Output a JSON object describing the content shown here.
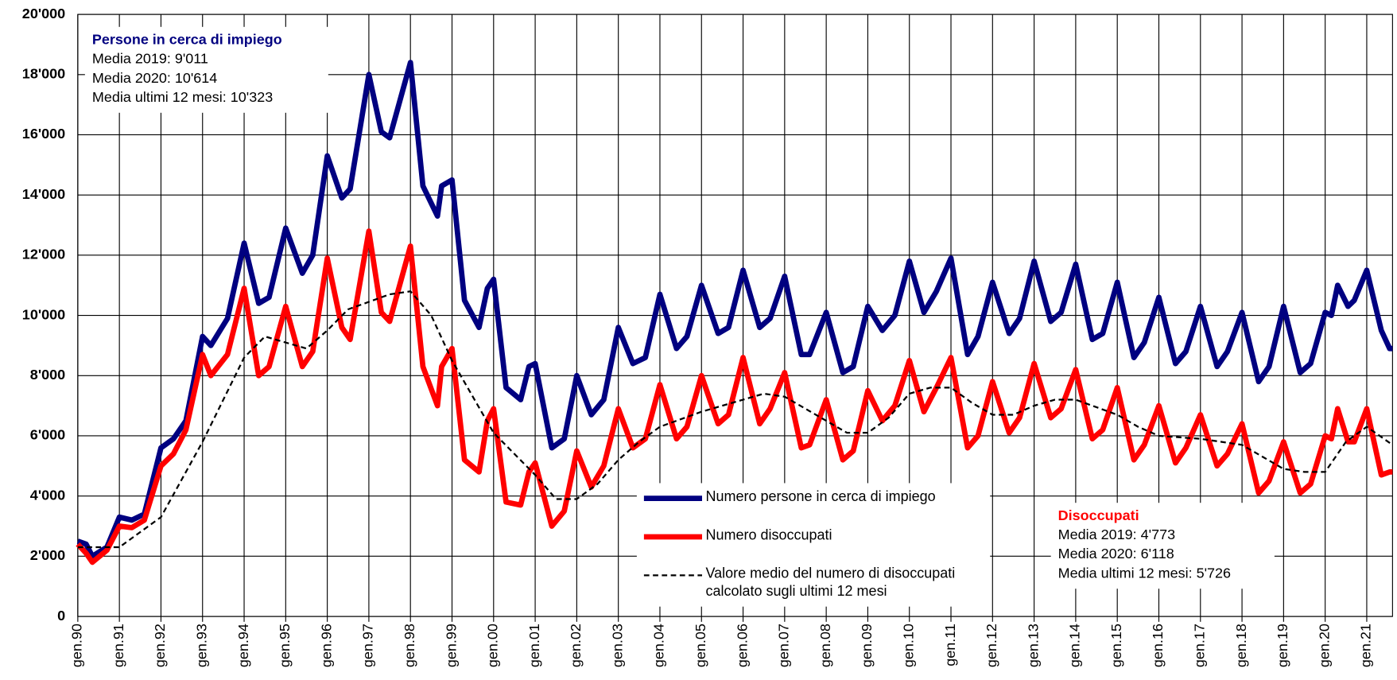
{
  "chart_data": {
    "type": "line",
    "xlim": [
      1990,
      2021.62
    ],
    "ylim": [
      0,
      20000
    ],
    "xticks": [
      {
        "value": 1990,
        "label": "gen.90"
      },
      {
        "value": 1991,
        "label": "gen.91"
      },
      {
        "value": 1992,
        "label": "gen.92"
      },
      {
        "value": 1993,
        "label": "gen.93"
      },
      {
        "value": 1994,
        "label": "gen.94"
      },
      {
        "value": 1995,
        "label": "gen.95"
      },
      {
        "value": 1996,
        "label": "gen.96"
      },
      {
        "value": 1997,
        "label": "gen.97"
      },
      {
        "value": 1998,
        "label": "gen.98"
      },
      {
        "value": 1999,
        "label": "gen.99"
      },
      {
        "value": 2000,
        "label": "gen.00"
      },
      {
        "value": 2001,
        "label": "gen.01"
      },
      {
        "value": 2002,
        "label": "gen.02"
      },
      {
        "value": 2003,
        "label": "gen.03"
      },
      {
        "value": 2004,
        "label": "gen.04"
      },
      {
        "value": 2005,
        "label": "gen.05"
      },
      {
        "value": 2006,
        "label": "gen.06"
      },
      {
        "value": 2007,
        "label": "gen.07"
      },
      {
        "value": 2008,
        "label": "gen.08"
      },
      {
        "value": 2009,
        "label": "gen.09"
      },
      {
        "value": 2010,
        "label": "gen.10"
      },
      {
        "value": 2011,
        "label": "gen.11"
      },
      {
        "value": 2012,
        "label": "gen.12"
      },
      {
        "value": 2013,
        "label": "gen.13"
      },
      {
        "value": 2014,
        "label": "gen.14"
      },
      {
        "value": 2015,
        "label": "gen.15"
      },
      {
        "value": 2016,
        "label": "gen.16"
      },
      {
        "value": 2017,
        "label": "gen.17"
      },
      {
        "value": 2018,
        "label": "gen.18"
      },
      {
        "value": 2019,
        "label": "gen.19"
      },
      {
        "value": 2020,
        "label": "gen.20"
      },
      {
        "value": 2021,
        "label": "gen.21"
      }
    ],
    "yticks": [
      0,
      {
        "value": 2000,
        "label": "2'000"
      },
      {
        "value": 4000,
        "label": "4'000"
      },
      {
        "value": 6000,
        "label": "6'000"
      },
      {
        "value": 8000,
        "label": "8'000"
      },
      {
        "value": 10000,
        "label": "10'000"
      },
      {
        "value": 12000,
        "label": "12'000"
      },
      {
        "value": 14000,
        "label": "14'000"
      },
      {
        "value": 16000,
        "label": "16'000"
      },
      {
        "value": 18000,
        "label": "18'000"
      },
      {
        "value": 20000,
        "label": "20'000"
      }
    ],
    "grid": true,
    "series": [
      {
        "name": "Numero persone in cerca di impiego",
        "color": "#000080",
        "width": 6,
        "x": [
          1990.0,
          1990.2,
          1990.35,
          1990.7,
          1991.0,
          1991.3,
          1991.6,
          1992.0,
          1992.3,
          1992.6,
          1993.0,
          1993.2,
          1993.6,
          1994.0,
          1994.35,
          1994.6,
          1995.0,
          1995.4,
          1995.65,
          1996.0,
          1996.35,
          1996.55,
          1997.0,
          1997.3,
          1997.5,
          1998.0,
          1998.3,
          1998.65,
          1998.75,
          1999.0,
          1999.3,
          1999.65,
          1999.85,
          2000.0,
          2000.3,
          2000.65,
          2000.85,
          2001.0,
          2001.4,
          2001.7,
          2002.0,
          2002.35,
          2002.65,
          2003.0,
          2003.35,
          2003.65,
          2004.0,
          2004.4,
          2004.65,
          2005.0,
          2005.4,
          2005.65,
          2006.0,
          2006.4,
          2006.65,
          2007.0,
          2007.4,
          2007.6,
          2008.0,
          2008.4,
          2008.65,
          2009.0,
          2009.35,
          2009.65,
          2010.0,
          2010.35,
          2010.65,
          2011.0,
          2011.4,
          2011.65,
          2012.0,
          2012.4,
          2012.65,
          2013.0,
          2013.4,
          2013.65,
          2014.0,
          2014.4,
          2014.65,
          2015.0,
          2015.4,
          2015.65,
          2016.0,
          2016.4,
          2016.65,
          2017.0,
          2017.4,
          2017.65,
          2018.0,
          2018.4,
          2018.65,
          2019.0,
          2019.4,
          2019.65,
          2020.0,
          2020.15,
          2020.3,
          2020.55,
          2020.7,
          2021.0,
          2021.35,
          2021.55,
          2021.62
        ],
        "values": [
          2500,
          2400,
          2000,
          2300,
          3300,
          3200,
          3400,
          5600,
          5900,
          6500,
          9300,
          9000,
          9900,
          12400,
          10400,
          10600,
          12900,
          11400,
          12000,
          15300,
          13900,
          14200,
          18000,
          16100,
          15900,
          18400,
          14300,
          13300,
          14300,
          14500,
          10500,
          9600,
          10900,
          11200,
          7600,
          7200,
          8300,
          8400,
          5600,
          5900,
          8000,
          6700,
          7200,
          9600,
          8400,
          8600,
          10700,
          8900,
          9300,
          11000,
          9400,
          9600,
          11500,
          9600,
          9900,
          11300,
          8700,
          8700,
          10100,
          8100,
          8300,
          10300,
          9500,
          10000,
          11800,
          10100,
          10800,
          11900,
          8700,
          9300,
          11100,
          9400,
          9900,
          11800,
          9800,
          10100,
          11700,
          9200,
          9400,
          11100,
          8600,
          9100,
          10600,
          8400,
          8800,
          10300,
          8300,
          8800,
          10100,
          7800,
          8300,
          10300,
          8100,
          8400,
          10100,
          10000,
          11000,
          10300,
          10500,
          11500,
          9500,
          8900,
          8900
        ]
      },
      {
        "name": "Numero disoccupati",
        "color": "#ff0000",
        "width": 6,
        "x": [
          1990.0,
          1990.2,
          1990.35,
          1990.7,
          1991.0,
          1991.3,
          1991.6,
          1992.0,
          1992.3,
          1992.6,
          1993.0,
          1993.2,
          1993.6,
          1994.0,
          1994.35,
          1994.6,
          1995.0,
          1995.4,
          1995.65,
          1996.0,
          1996.35,
          1996.55,
          1997.0,
          1997.3,
          1997.5,
          1998.0,
          1998.3,
          1998.65,
          1998.75,
          1999.0,
          1999.3,
          1999.65,
          1999.85,
          2000.0,
          2000.3,
          2000.65,
          2000.85,
          2001.0,
          2001.4,
          2001.7,
          2002.0,
          2002.35,
          2002.65,
          2003.0,
          2003.35,
          2003.65,
          2004.0,
          2004.4,
          2004.65,
          2005.0,
          2005.4,
          2005.65,
          2006.0,
          2006.4,
          2006.65,
          2007.0,
          2007.4,
          2007.6,
          2008.0,
          2008.4,
          2008.65,
          2009.0,
          2009.35,
          2009.65,
          2010.0,
          2010.35,
          2010.65,
          2011.0,
          2011.4,
          2011.65,
          2012.0,
          2012.4,
          2012.65,
          2013.0,
          2013.4,
          2013.65,
          2014.0,
          2014.4,
          2014.65,
          2015.0,
          2015.4,
          2015.65,
          2016.0,
          2016.4,
          2016.65,
          2017.0,
          2017.4,
          2017.65,
          2018.0,
          2018.4,
          2018.65,
          2019.0,
          2019.4,
          2019.65,
          2020.0,
          2020.15,
          2020.3,
          2020.55,
          2020.7,
          2021.0,
          2021.35,
          2021.55,
          2021.62
        ],
        "values": [
          2400,
          2100,
          1800,
          2200,
          3000,
          2950,
          3200,
          5000,
          5400,
          6200,
          8700,
          8000,
          8700,
          10900,
          8000,
          8300,
          10300,
          8300,
          8800,
          11900,
          9600,
          9200,
          12800,
          10100,
          9800,
          12300,
          8300,
          7000,
          8300,
          8900,
          5200,
          4800,
          6500,
          6900,
          3800,
          3700,
          4800,
          5100,
          3000,
          3500,
          5500,
          4300,
          5000,
          6900,
          5600,
          5900,
          7700,
          5900,
          6300,
          8000,
          6400,
          6700,
          8600,
          6400,
          6900,
          8100,
          5600,
          5700,
          7200,
          5200,
          5500,
          7500,
          6500,
          7000,
          8500,
          6800,
          7600,
          8600,
          5600,
          6000,
          7800,
          6100,
          6600,
          8400,
          6600,
          6900,
          8200,
          5900,
          6200,
          7600,
          5200,
          5700,
          7000,
          5100,
          5600,
          6700,
          5000,
          5400,
          6400,
          4100,
          4500,
          5800,
          4100,
          4400,
          6000,
          5900,
          6900,
          5800,
          5800,
          6900,
          4700,
          4800,
          4800
        ]
      },
      {
        "name": "Valore medio del numero di disoccupati calcolato sugli ultimi 12 mesi",
        "color": "#000000",
        "width": 2,
        "dashed": true,
        "x": [
          1990.0,
          1991.0,
          1992.0,
          1993.0,
          1994.0,
          1994.5,
          1995.5,
          1996.0,
          1996.5,
          1997.5,
          1998.0,
          1998.5,
          1999.0,
          2000.0,
          2001.0,
          2001.5,
          2002.0,
          2002.5,
          2003.0,
          2003.5,
          2004.0,
          2005.0,
          2006.0,
          2006.5,
          2007.0,
          2007.5,
          2008.0,
          2008.5,
          2009.0,
          2009.5,
          2010.0,
          2010.5,
          2011.0,
          2011.5,
          2012.0,
          2012.5,
          2013.0,
          2013.5,
          2014.0,
          2015.0,
          2015.5,
          2016.0,
          2017.0,
          2018.0,
          2018.5,
          2019.0,
          2019.5,
          2020.0,
          2020.5,
          2021.0,
          2021.62
        ],
        "values": [
          2300,
          2300,
          3300,
          5800,
          8600,
          9300,
          8900,
          9500,
          10200,
          10700,
          10800,
          10000,
          8500,
          6100,
          4700,
          3900,
          3900,
          4400,
          5200,
          5800,
          6300,
          6800,
          7200,
          7400,
          7300,
          6900,
          6500,
          6100,
          6100,
          6600,
          7400,
          7600,
          7600,
          7100,
          6700,
          6700,
          7000,
          7200,
          7200,
          6700,
          6300,
          6000,
          5900,
          5700,
          5300,
          4900,
          4800,
          4800,
          5800,
          6300,
          5700
        ]
      }
    ],
    "annotations": [
      {
        "color": "#000080",
        "lines": [
          "Persone in cerca di impiego",
          "Media 2019: 9'011",
          "Media 2020: 10'614",
          "Media ultimi 12 mesi: 10'323"
        ]
      },
      {
        "color": "#ff0000",
        "lines": [
          "Disoccupati",
          "Media 2019: 4'773",
          "Media 2020: 6'118",
          "Media ultimi 12 mesi: 5'726"
        ]
      }
    ]
  }
}
